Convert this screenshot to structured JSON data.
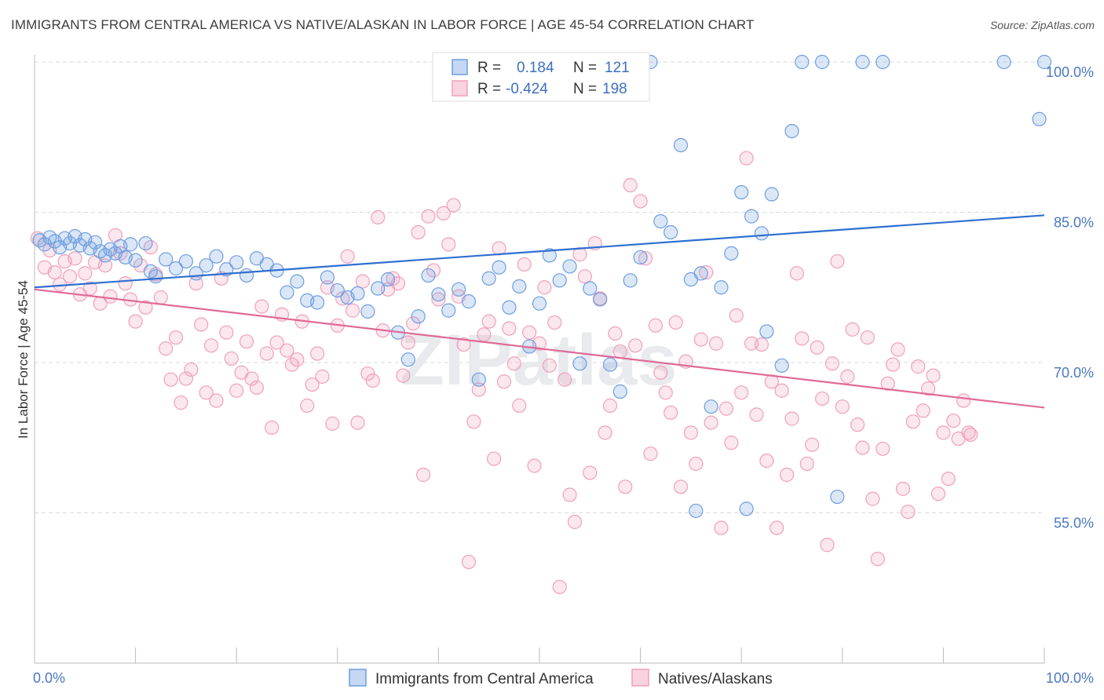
{
  "title": "IMMIGRANTS FROM CENTRAL AMERICA VS NATIVE/ALASKAN IN LABOR FORCE | AGE 45-54 CORRELATION CHART",
  "source": "Source: ZipAtlas.com",
  "watermark": "ZIPatlas",
  "chart_data": {
    "type": "scatter",
    "title": "IMMIGRANTS FROM CENTRAL AMERICA VS NATIVE/ALASKAN IN LABOR FORCE | AGE 45-54 CORRELATION CHART",
    "xlabel": "",
    "ylabel": "In Labor Force | Age 45-54",
    "xlim": [
      0,
      100
    ],
    "ylim": [
      41,
      101
    ],
    "x_tick_labels": [
      "0.0%",
      "100.0%"
    ],
    "y_ticks": [
      55,
      70,
      85,
      100
    ],
    "y_tick_labels": [
      "55.0%",
      "70.0%",
      "85.0%",
      "100.0%"
    ],
    "grid": true,
    "legend_position": "top-center",
    "series": [
      {
        "name": "Immigrants from Central America",
        "color": "#6e9ee0",
        "R": "0.184",
        "N": "121",
        "trend": {
          "x": [
            0,
            100
          ],
          "y": [
            77.5,
            84.7
          ]
        },
        "points": [
          [
            0.5,
            82.2
          ],
          [
            1,
            81.8
          ],
          [
            1.5,
            82.5
          ],
          [
            2,
            82.1
          ],
          [
            2.5,
            81.5
          ],
          [
            3,
            82.4
          ],
          [
            3.5,
            81.9
          ],
          [
            4,
            82.6
          ],
          [
            4.5,
            81.7
          ],
          [
            5,
            82.3
          ],
          [
            5.5,
            81.4
          ],
          [
            6,
            82.0
          ],
          [
            6.5,
            81.1
          ],
          [
            7,
            80.7
          ],
          [
            7.5,
            81.3
          ],
          [
            8,
            80.9
          ],
          [
            8.5,
            81.6
          ],
          [
            9,
            80.5
          ],
          [
            9.5,
            81.8
          ],
          [
            10,
            80.2
          ],
          [
            11,
            81.9
          ],
          [
            11.5,
            79.1
          ],
          [
            12,
            78.6
          ],
          [
            13,
            80.3
          ],
          [
            14,
            79.4
          ],
          [
            15,
            80.1
          ],
          [
            16,
            78.9
          ],
          [
            17,
            79.7
          ],
          [
            18,
            80.6
          ],
          [
            19,
            79.3
          ],
          [
            20,
            80.0
          ],
          [
            21,
            78.7
          ],
          [
            22,
            80.4
          ],
          [
            23,
            79.8
          ],
          [
            24,
            79.2
          ],
          [
            25,
            77.0
          ],
          [
            26,
            78.1
          ],
          [
            27,
            76.2
          ],
          [
            28,
            76.0
          ],
          [
            29,
            78.5
          ],
          [
            30,
            77.2
          ],
          [
            31,
            76.5
          ],
          [
            32,
            76.9
          ],
          [
            33,
            75.1
          ],
          [
            34,
            77.4
          ],
          [
            35,
            78.3
          ],
          [
            36,
            73.0
          ],
          [
            37,
            70.3
          ],
          [
            38,
            74.6
          ],
          [
            39,
            78.7
          ],
          [
            40,
            76.8
          ],
          [
            41,
            75.2
          ],
          [
            42,
            77.3
          ],
          [
            43,
            76.1
          ],
          [
            44,
            68.3
          ],
          [
            45,
            78.4
          ],
          [
            46,
            79.5
          ],
          [
            47,
            75.5
          ],
          [
            48,
            77.6
          ],
          [
            49,
            71.6
          ],
          [
            50,
            75.9
          ],
          [
            51,
            80.7
          ],
          [
            52,
            78.2
          ],
          [
            53,
            79.6
          ],
          [
            54,
            69.9
          ],
          [
            55,
            77.4
          ],
          [
            56,
            76.3
          ],
          [
            57,
            69.8
          ],
          [
            58,
            67.1
          ],
          [
            59,
            78.2
          ],
          [
            60,
            80.5
          ],
          [
            61,
            100
          ],
          [
            62,
            84.1
          ],
          [
            63,
            83.0
          ],
          [
            64,
            91.7
          ],
          [
            65,
            78.3
          ],
          [
            65.5,
            55.2
          ],
          [
            66,
            78.9
          ],
          [
            67,
            65.6
          ],
          [
            68,
            77.5
          ],
          [
            69,
            80.9
          ],
          [
            70,
            87.0
          ],
          [
            70.5,
            55.4
          ],
          [
            71,
            84.6
          ],
          [
            72,
            82.9
          ],
          [
            72.5,
            73.1
          ],
          [
            73,
            86.8
          ],
          [
            74,
            69.7
          ],
          [
            75,
            93.1
          ],
          [
            76,
            100
          ],
          [
            78,
            100
          ],
          [
            79.5,
            56.6
          ],
          [
            82,
            100
          ],
          [
            84,
            100
          ],
          [
            100,
            100
          ],
          [
            96,
            100
          ],
          [
            99.5,
            94.3
          ],
          [
            53.5,
            100
          ]
        ]
      },
      {
        "name": "Natives/Alaskans",
        "color": "#f0a0bc",
        "R": "-0.424",
        "N": "198",
        "trend": {
          "x": [
            0,
            100
          ],
          "y": [
            77.3,
            65.5
          ]
        },
        "points": [
          [
            0.3,
            82.4
          ],
          [
            1,
            79.5
          ],
          [
            1.5,
            81.2
          ],
          [
            2,
            79.0
          ],
          [
            2.5,
            77.8
          ],
          [
            3,
            80.1
          ],
          [
            3.5,
            78.6
          ],
          [
            4,
            80.4
          ],
          [
            4.5,
            76.8
          ],
          [
            5,
            78.9
          ],
          [
            5.5,
            77.4
          ],
          [
            6,
            80.0
          ],
          [
            6.5,
            75.9
          ],
          [
            7,
            79.7
          ],
          [
            7.5,
            76.6
          ],
          [
            8,
            82.7
          ],
          [
            8.5,
            80.9
          ],
          [
            9,
            77.9
          ],
          [
            9.5,
            76.3
          ],
          [
            10,
            74.1
          ],
          [
            10.5,
            79.7
          ],
          [
            11,
            75.5
          ],
          [
            11.5,
            81.5
          ],
          [
            12,
            78.8
          ],
          [
            12.5,
            76.5
          ],
          [
            13,
            71.4
          ],
          [
            13.5,
            68.3
          ],
          [
            14,
            72.5
          ],
          [
            14.5,
            66.0
          ],
          [
            15,
            68.4
          ],
          [
            15.5,
            69.3
          ],
          [
            16,
            77.9
          ],
          [
            16.5,
            73.8
          ],
          [
            17,
            67.0
          ],
          [
            17.5,
            71.7
          ],
          [
            18,
            66.2
          ],
          [
            18.5,
            78.4
          ],
          [
            19,
            73.0
          ],
          [
            19.5,
            70.4
          ],
          [
            20,
            67.2
          ],
          [
            20.5,
            69.0
          ],
          [
            21,
            72.1
          ],
          [
            21.5,
            68.4
          ],
          [
            22,
            67.5
          ],
          [
            22.5,
            75.6
          ],
          [
            23,
            70.9
          ],
          [
            23.5,
            63.5
          ],
          [
            24,
            72.0
          ],
          [
            24.5,
            74.8
          ],
          [
            25,
            71.2
          ],
          [
            25.5,
            69.8
          ],
          [
            26,
            70.3
          ],
          [
            26.5,
            74.1
          ],
          [
            27,
            65.7
          ],
          [
            27.5,
            67.8
          ],
          [
            28,
            70.9
          ],
          [
            28.5,
            68.6
          ],
          [
            29,
            77.5
          ],
          [
            29.5,
            63.9
          ],
          [
            30,
            73.7
          ],
          [
            30.5,
            76.4
          ],
          [
            31,
            80.6
          ],
          [
            31.5,
            75.2
          ],
          [
            32,
            64.0
          ],
          [
            32.5,
            78.1
          ],
          [
            33,
            68.9
          ],
          [
            33.5,
            68.2
          ],
          [
            34,
            84.5
          ],
          [
            34.5,
            73.2
          ],
          [
            35,
            77.3
          ],
          [
            35.5,
            78.4
          ],
          [
            36,
            77.9
          ],
          [
            36.5,
            68.7
          ],
          [
            37,
            72.0
          ],
          [
            37.5,
            73.9
          ],
          [
            38,
            83.0
          ],
          [
            38.5,
            58.8
          ],
          [
            39,
            84.6
          ],
          [
            39.5,
            79.2
          ],
          [
            40,
            76.3
          ],
          [
            40.5,
            84.9
          ],
          [
            41,
            81.8
          ],
          [
            41.5,
            85.7
          ],
          [
            42,
            76.6
          ],
          [
            42.5,
            71.8
          ],
          [
            43,
            50.1
          ],
          [
            43.5,
            64.1
          ],
          [
            44,
            67.3
          ],
          [
            44.5,
            72.8
          ],
          [
            45,
            74.1
          ],
          [
            45.5,
            60.4
          ],
          [
            46,
            81.4
          ],
          [
            46.5,
            68.1
          ],
          [
            47,
            73.4
          ],
          [
            47.5,
            69.9
          ],
          [
            48,
            65.7
          ],
          [
            48.5,
            79.8
          ],
          [
            49,
            73.0
          ],
          [
            49.5,
            59.7
          ],
          [
            50,
            71.9
          ],
          [
            50.5,
            77.5
          ],
          [
            51,
            69.7
          ],
          [
            51.5,
            74.0
          ],
          [
            52,
            47.6
          ],
          [
            52.5,
            68.3
          ],
          [
            53,
            56.8
          ],
          [
            53.5,
            54.1
          ],
          [
            54,
            80.8
          ],
          [
            54.5,
            78.6
          ],
          [
            55,
            59.0
          ],
          [
            55.5,
            81.9
          ],
          [
            56,
            76.4
          ],
          [
            56.5,
            63.0
          ],
          [
            57,
            65.7
          ],
          [
            57.5,
            72.9
          ],
          [
            58,
            71.1
          ],
          [
            58.5,
            57.6
          ],
          [
            59,
            87.7
          ],
          [
            59.5,
            71.7
          ],
          [
            60,
            86.1
          ],
          [
            60.5,
            80.4
          ],
          [
            61,
            60.9
          ],
          [
            61.5,
            73.7
          ],
          [
            62,
            69.0
          ],
          [
            62.5,
            67.0
          ],
          [
            63,
            65.0
          ],
          [
            63.5,
            74.0
          ],
          [
            64,
            57.6
          ],
          [
            64.5,
            70.1
          ],
          [
            65,
            63.0
          ],
          [
            65.5,
            59.9
          ],
          [
            66,
            72.3
          ],
          [
            66.5,
            79.0
          ],
          [
            67,
            64.0
          ],
          [
            67.5,
            71.9
          ],
          [
            68,
            53.5
          ],
          [
            68.5,
            65.4
          ],
          [
            69,
            62.0
          ],
          [
            69.5,
            74.7
          ],
          [
            70,
            67.0
          ],
          [
            70.5,
            90.4
          ],
          [
            71,
            71.9
          ],
          [
            71.5,
            64.8
          ],
          [
            72,
            71.8
          ],
          [
            72.5,
            60.2
          ],
          [
            73,
            68.1
          ],
          [
            73.5,
            53.5
          ],
          [
            74,
            67.2
          ],
          [
            74.5,
            58.8
          ],
          [
            75,
            64.4
          ],
          [
            75.5,
            78.9
          ],
          [
            76,
            72.4
          ],
          [
            76.5,
            59.9
          ],
          [
            77,
            61.8
          ],
          [
            77.5,
            71.5
          ],
          [
            78,
            66.4
          ],
          [
            78.5,
            51.8
          ],
          [
            79,
            69.9
          ],
          [
            79.5,
            80.1
          ],
          [
            80,
            65.6
          ],
          [
            80.5,
            68.6
          ],
          [
            81,
            73.3
          ],
          [
            81.5,
            63.8
          ],
          [
            82,
            61.5
          ],
          [
            82.5,
            72.5
          ],
          [
            83,
            56.4
          ],
          [
            83.5,
            50.4
          ],
          [
            84,
            61.4
          ],
          [
            84.5,
            67.9
          ],
          [
            85,
            69.8
          ],
          [
            85.5,
            71.3
          ],
          [
            86,
            57.4
          ],
          [
            86.5,
            55.1
          ],
          [
            87,
            64.1
          ],
          [
            87.5,
            69.6
          ],
          [
            88,
            65.2
          ],
          [
            88.5,
            67.4
          ],
          [
            89,
            68.7
          ],
          [
            89.5,
            56.9
          ],
          [
            90,
            63.0
          ],
          [
            90.5,
            58.4
          ],
          [
            91,
            64.2
          ],
          [
            91.5,
            62.4
          ],
          [
            92,
            66.2
          ],
          [
            92.5,
            63.0
          ],
          [
            92.7,
            62.8
          ]
        ]
      }
    ]
  },
  "legend": {
    "r_label": "R =",
    "n_label": "N =",
    "series": [
      {
        "name": "Immigrants from Central America",
        "r": "0.184",
        "n": "121",
        "color": "#6e9ee0"
      },
      {
        "name": "Natives/Alaskans",
        "r": "-0.424",
        "n": "198",
        "color": "#f0a0bc"
      }
    ]
  }
}
